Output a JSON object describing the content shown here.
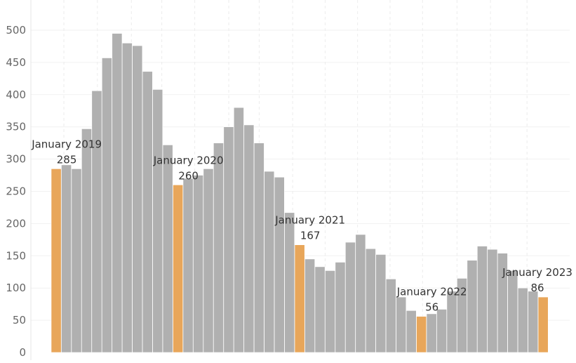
{
  "chart_data": {
    "type": "bar",
    "title": "",
    "xlabel": "",
    "ylabel": "",
    "ylim": [
      0,
      520
    ],
    "yticks": [
      0,
      50,
      100,
      150,
      200,
      250,
      300,
      350,
      400,
      450,
      500
    ],
    "ytick_labels": [
      "0",
      "50",
      "100",
      "150",
      "200",
      "250",
      "300",
      "350",
      "400",
      "450",
      "500"
    ],
    "grid": "vertical dashed lines at year boundaries",
    "colors": {
      "bar_default": "#b0b0b0",
      "bar_highlight": "#e8a65a"
    },
    "values": [
      285,
      291,
      285,
      347,
      406,
      457,
      495,
      480,
      476,
      436,
      408,
      322,
      260,
      270,
      275,
      285,
      325,
      350,
      380,
      353,
      325,
      281,
      272,
      217,
      167,
      145,
      133,
      127,
      140,
      171,
      183,
      161,
      152,
      114,
      86,
      65,
      56,
      60,
      67,
      95,
      115,
      143,
      165,
      160,
      154,
      127,
      100,
      95,
      86
    ],
    "highlight_indices": [
      0,
      12,
      24,
      36,
      48
    ],
    "annotations": [
      {
        "index": 0,
        "label": "January 2019",
        "value": "285"
      },
      {
        "index": 12,
        "label": "January 2020",
        "value": "260"
      },
      {
        "index": 24,
        "label": "January 2021",
        "value": "167"
      },
      {
        "index": 36,
        "label": "January 2022",
        "value": "56"
      },
      {
        "index": 48,
        "label": "January 2023",
        "value": "86"
      }
    ]
  }
}
